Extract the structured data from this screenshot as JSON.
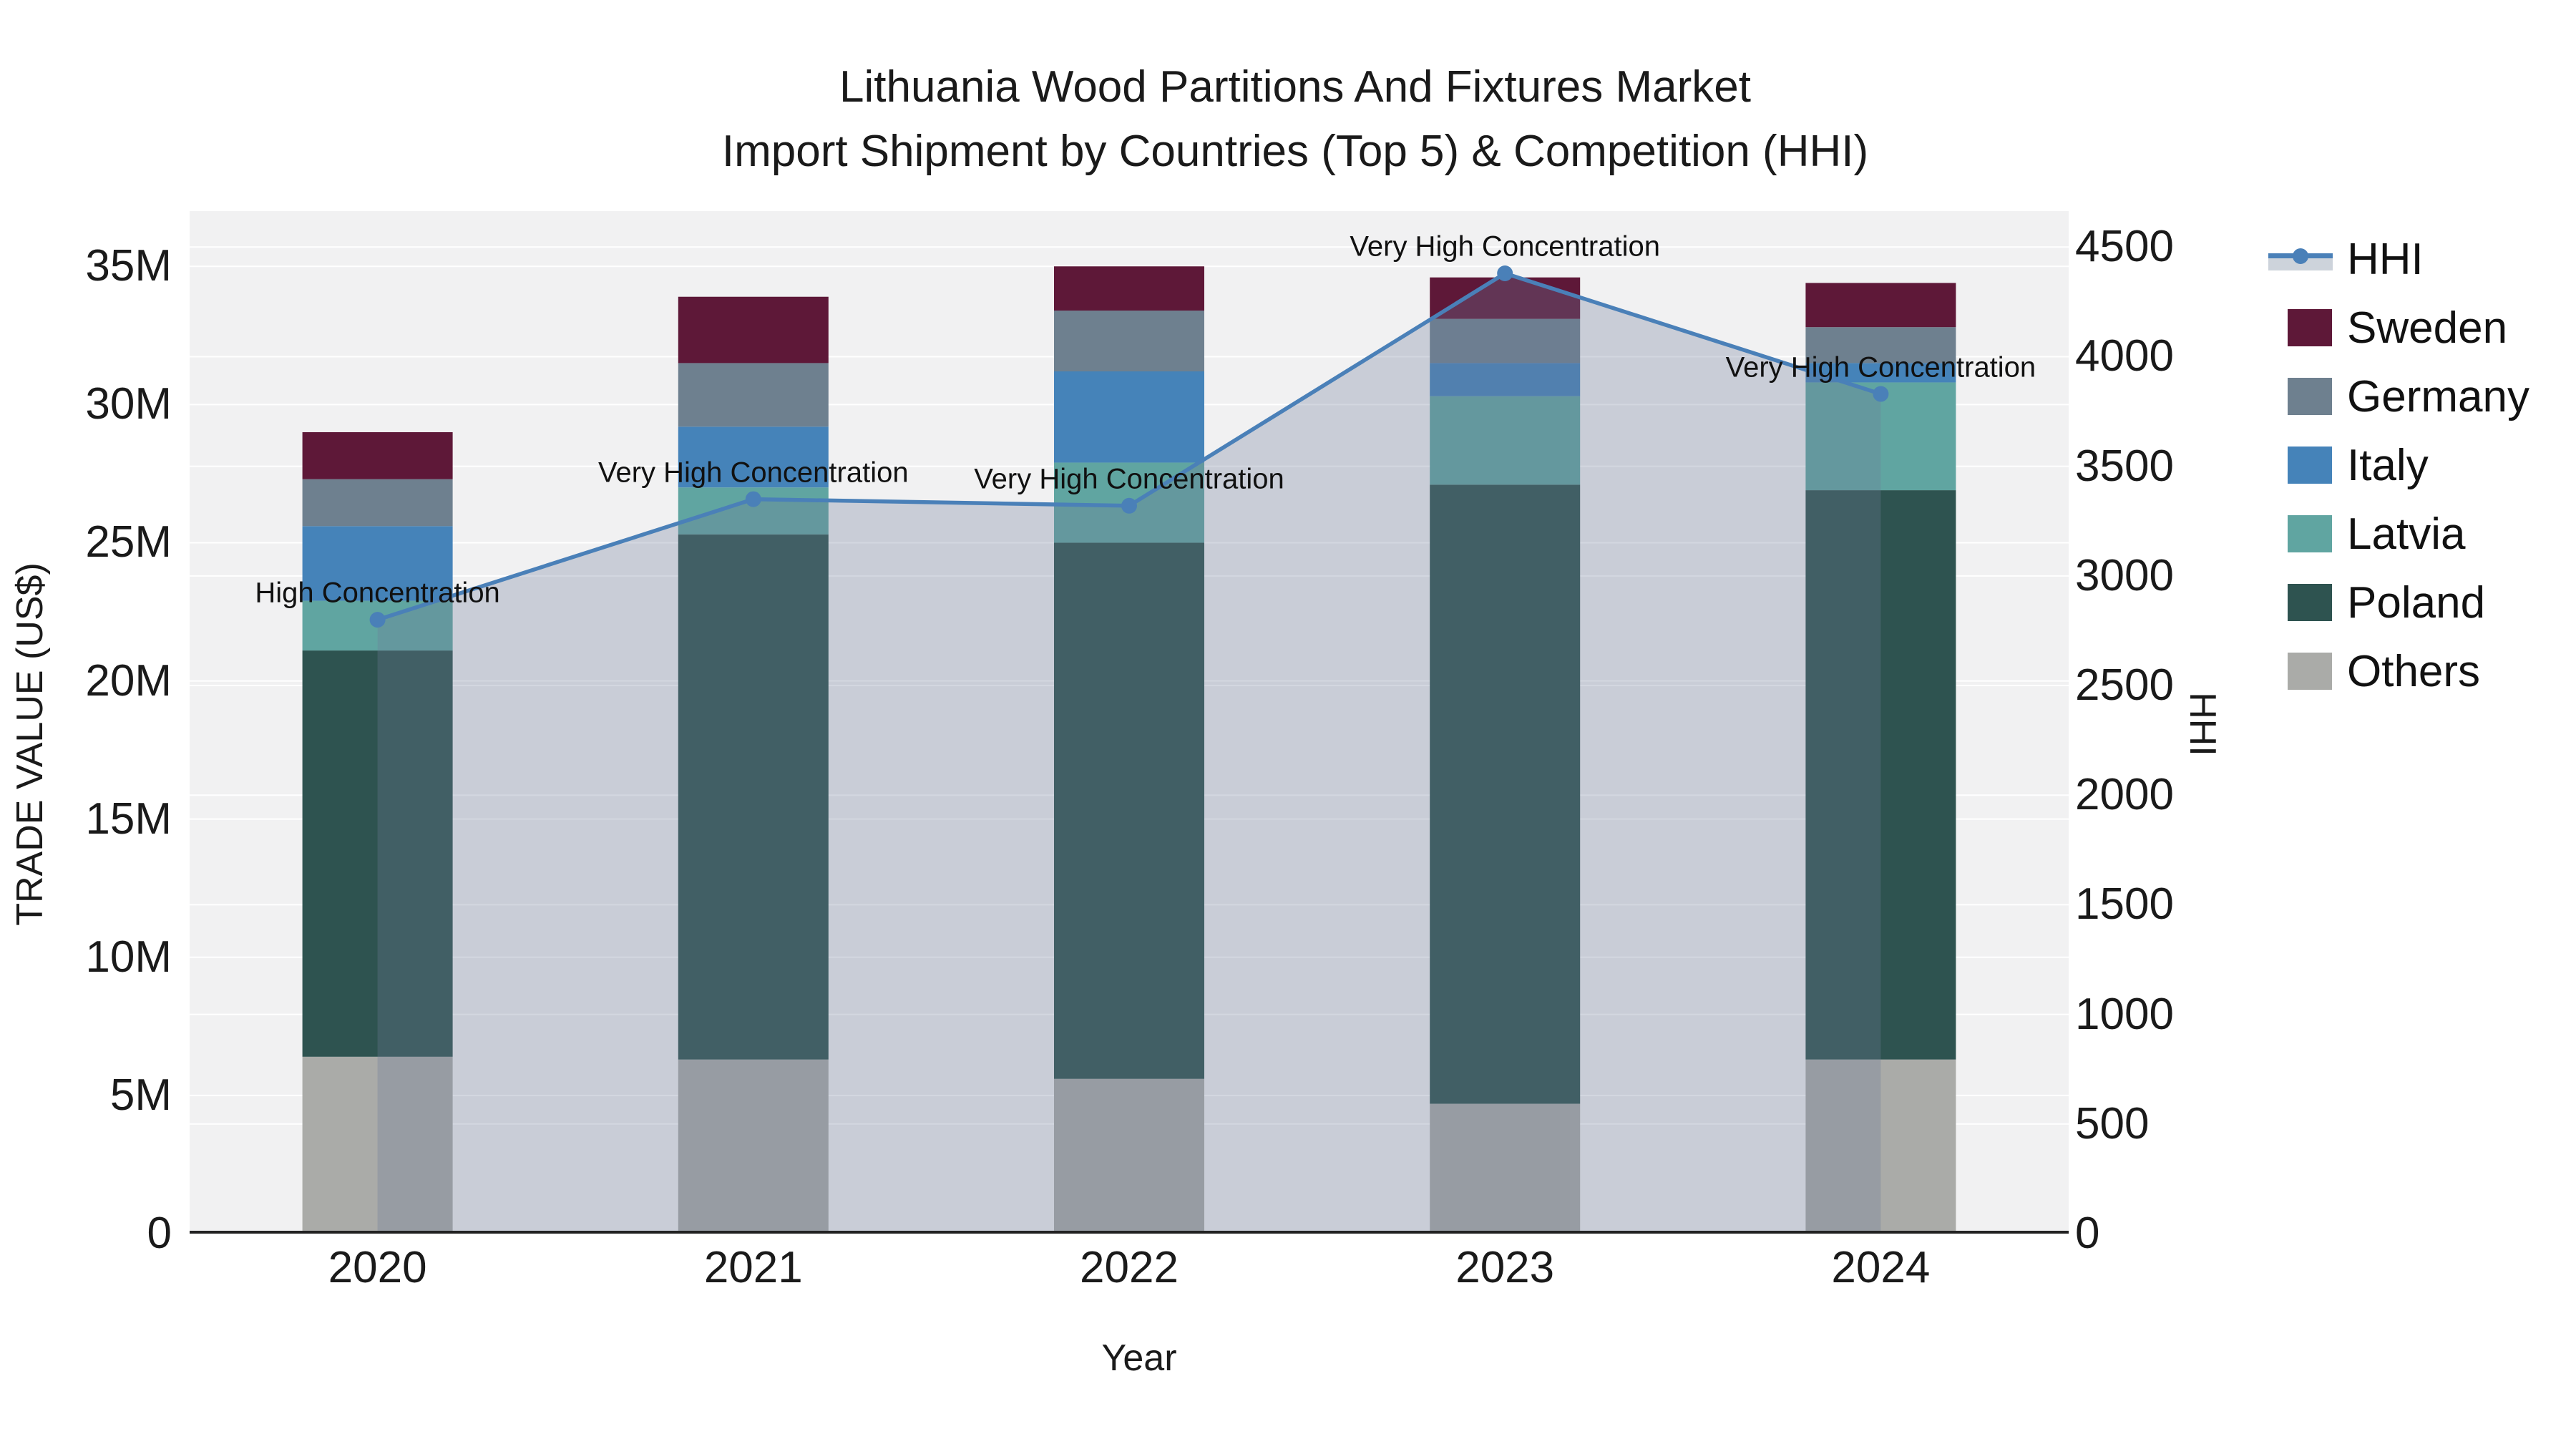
{
  "title": {
    "line1": "Lithuania Wood Partitions And Fixtures Market",
    "line2": "Import Shipment by Countries (Top 5) & Competition (HHI)"
  },
  "axes": {
    "x": {
      "title": "Year",
      "categories": [
        "2020",
        "2021",
        "2022",
        "2023",
        "2024"
      ]
    },
    "y_left": {
      "title": "TRADE VALUE (US$)",
      "tick_labels": [
        "0",
        "5M",
        "10M",
        "15M",
        "20M",
        "25M",
        "30M",
        "35M"
      ],
      "tick_values": [
        0,
        5,
        10,
        15,
        20,
        25,
        30,
        35
      ],
      "range": [
        0,
        37.0
      ]
    },
    "y_right": {
      "title": "HHI",
      "tick_labels": [
        "0",
        "500",
        "1000",
        "1500",
        "2000",
        "2500",
        "3000",
        "3500",
        "4000",
        "4500"
      ],
      "tick_values": [
        0,
        500,
        1000,
        1500,
        2000,
        2500,
        3000,
        3500,
        4000,
        4500
      ],
      "range": [
        0,
        4664
      ]
    }
  },
  "legend": {
    "items": [
      {
        "label": "HHI",
        "kind": "line",
        "color": "#4a80b8"
      },
      {
        "label": "Sweden",
        "kind": "swatch",
        "color": "#5e1838"
      },
      {
        "label": "Germany",
        "kind": "swatch",
        "color": "#6e808f"
      },
      {
        "label": "Italy",
        "kind": "swatch",
        "color": "#4583b9"
      },
      {
        "label": "Latvia",
        "kind": "swatch",
        "color": "#60a5a1"
      },
      {
        "label": "Poland",
        "kind": "swatch",
        "color": "#2e5350"
      },
      {
        "label": "Others",
        "kind": "swatch",
        "color": "#aaaba8"
      }
    ]
  },
  "chart_data": {
    "type": "combo: stacked bar (left axis, US$ M) + line with area fill (right axis, HHI)",
    "categories": [
      "2020",
      "2021",
      "2022",
      "2023",
      "2024"
    ],
    "bar_unit": "US$ millions (trade value)",
    "stack_order_bottom_to_top": [
      "Others",
      "Poland",
      "Latvia",
      "Italy",
      "Germany",
      "Sweden"
    ],
    "series": [
      {
        "name": "Others",
        "color": "#aaaba8",
        "values": [
          6.4,
          6.3,
          5.6,
          4.7,
          6.3
        ]
      },
      {
        "name": "Poland",
        "color": "#2e5350",
        "values": [
          14.7,
          19.0,
          19.4,
          22.4,
          20.6
        ]
      },
      {
        "name": "Latvia",
        "color": "#60a5a1",
        "values": [
          1.8,
          1.7,
          2.9,
          3.2,
          3.9
        ]
      },
      {
        "name": "Italy",
        "color": "#4583b9",
        "values": [
          2.7,
          2.2,
          3.3,
          1.2,
          0.7
        ]
      },
      {
        "name": "Germany",
        "color": "#6e808f",
        "values": [
          1.7,
          2.3,
          2.2,
          1.6,
          1.3
        ]
      },
      {
        "name": "Sweden",
        "color": "#5e1838",
        "values": [
          1.7,
          2.4,
          1.6,
          1.5,
          1.6
        ]
      }
    ],
    "bar_totals": [
      29.0,
      33.9,
      35.0,
      34.6,
      34.4
    ],
    "line": {
      "name": "HHI",
      "color": "#4a80b8",
      "area_fill": "rgba(108,124,152,0.30)",
      "values": [
        2800,
        3350,
        3320,
        4380,
        3830
      ],
      "annotations": [
        "High Concentration",
        "Very High Concentration",
        "Very High Concentration",
        "Very High Concentration",
        "Very High Concentration"
      ]
    },
    "plot_background": "#f1f1f2",
    "gridline_color": "#ffffff",
    "baseline_color": "#222222",
    "legend_position": "right",
    "grid_on": true
  }
}
